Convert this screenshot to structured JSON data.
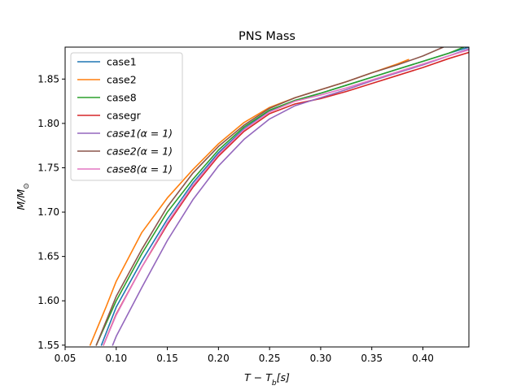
{
  "chart_data": {
    "type": "line",
    "title": "PNS Mass",
    "xlabel_main": "T − T",
    "xlabel_sub": "b",
    "xlabel_tail": "[s]",
    "ylabel_main": "M/M",
    "ylabel_sub": "⊙",
    "xlim": [
      0.05,
      0.445
    ],
    "ylim": [
      1.548,
      1.886
    ],
    "xticks": [
      0.05,
      0.1,
      0.15,
      0.2,
      0.25,
      0.3,
      0.35,
      0.4
    ],
    "xtick_labels": [
      "0.05",
      "0.10",
      "0.15",
      "0.20",
      "0.25",
      "0.30",
      "0.35",
      "0.40"
    ],
    "yticks": [
      1.55,
      1.6,
      1.65,
      1.7,
      1.75,
      1.8,
      1.85
    ],
    "ytick_labels": [
      "1.55",
      "1.60",
      "1.65",
      "1.70",
      "1.75",
      "1.80",
      "1.85"
    ],
    "legend_position": "top-left",
    "grid": false,
    "series": [
      {
        "name": "case1",
        "color": "#1f77b4",
        "x": [
          0.0855,
          0.1,
          0.125,
          0.15,
          0.175,
          0.2,
          0.225,
          0.25,
          0.275,
          0.3,
          0.325,
          0.35,
          0.375,
          0.4,
          0.425,
          0.445
        ],
        "y": [
          1.55,
          1.593,
          1.645,
          1.692,
          1.733,
          1.767,
          1.794,
          1.814,
          1.826,
          1.834,
          1.843,
          1.852,
          1.861,
          1.87,
          1.879,
          1.886
        ]
      },
      {
        "name": "case2",
        "color": "#ff7f0e",
        "x": [
          0.0745,
          0.09,
          0.1,
          0.125,
          0.15,
          0.175,
          0.2,
          0.225,
          0.25,
          0.275,
          0.3,
          0.325,
          0.35,
          0.375,
          0.386
        ],
        "y": [
          1.55,
          1.593,
          1.622,
          1.677,
          1.716,
          1.748,
          1.777,
          1.801,
          1.818,
          1.829,
          1.838,
          1.847,
          1.857,
          1.867,
          1.872
        ]
      },
      {
        "name": "case8",
        "color": "#2ca02c",
        "x": [
          0.0805,
          0.1,
          0.125,
          0.15,
          0.175,
          0.2,
          0.225,
          0.25,
          0.275,
          0.3,
          0.325,
          0.35,
          0.375,
          0.4,
          0.425,
          0.44
        ],
        "y": [
          1.55,
          1.6,
          1.653,
          1.7,
          1.737,
          1.77,
          1.796,
          1.815,
          1.826,
          1.834,
          1.843,
          1.852,
          1.861,
          1.87,
          1.879,
          1.886
        ]
      },
      {
        "name": "casegr",
        "color": "#d62728",
        "x": [
          0.0875,
          0.1,
          0.125,
          0.15,
          0.175,
          0.2,
          0.225,
          0.25,
          0.275,
          0.3,
          0.325,
          0.35,
          0.375,
          0.4,
          0.425,
          0.445
        ],
        "y": [
          1.55,
          1.585,
          1.638,
          1.686,
          1.728,
          1.763,
          1.791,
          1.811,
          1.822,
          1.828,
          1.836,
          1.845,
          1.854,
          1.863,
          1.873,
          1.88
        ]
      },
      {
        "name": "case1(α = 1)",
        "color": "#9467bd",
        "x": [
          0.0965,
          0.1,
          0.125,
          0.15,
          0.175,
          0.2,
          0.225,
          0.25,
          0.275,
          0.3,
          0.325,
          0.35,
          0.375,
          0.4,
          0.425,
          0.445
        ],
        "y": [
          1.55,
          1.56,
          1.615,
          1.668,
          1.714,
          1.752,
          1.782,
          1.805,
          1.82,
          1.829,
          1.838,
          1.848,
          1.857,
          1.866,
          1.876,
          1.884
        ]
      },
      {
        "name": "case2(α = 1)",
        "color": "#8c564b",
        "x": [
          0.0805,
          0.1,
          0.125,
          0.15,
          0.175,
          0.2,
          0.225,
          0.25,
          0.275,
          0.3,
          0.325,
          0.35,
          0.375,
          0.4,
          0.42
        ],
        "y": [
          1.55,
          1.605,
          1.658,
          1.706,
          1.744,
          1.774,
          1.798,
          1.817,
          1.829,
          1.838,
          1.847,
          1.857,
          1.866,
          1.876,
          1.886
        ]
      },
      {
        "name": "case8(α = 1)",
        "color": "#e377c2",
        "x": [
          0.0875,
          0.1,
          0.125,
          0.15,
          0.175,
          0.2,
          0.225,
          0.25,
          0.275,
          0.3,
          0.325,
          0.35,
          0.375,
          0.4,
          0.425,
          0.445
        ],
        "y": [
          1.55,
          1.584,
          1.638,
          1.688,
          1.73,
          1.765,
          1.793,
          1.813,
          1.825,
          1.832,
          1.84,
          1.849,
          1.858,
          1.867,
          1.876,
          1.883
        ]
      }
    ]
  }
}
